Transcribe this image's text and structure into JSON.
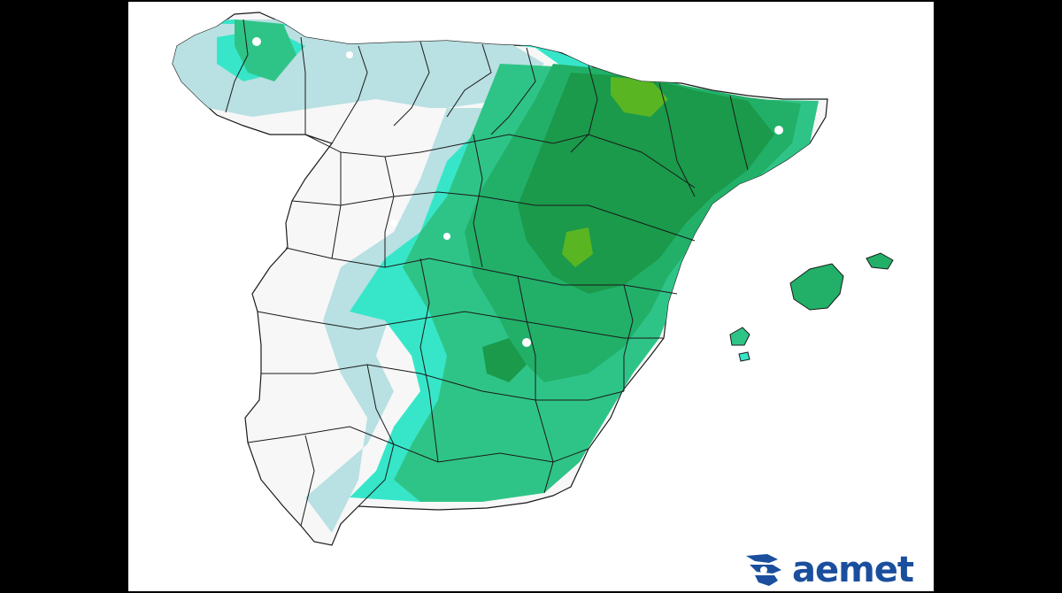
{
  "logo": {
    "text": "aemet",
    "icon": "aemet-swirl-icon",
    "color": "#1b4f9e"
  },
  "palette": {
    "background": "#000000",
    "map_bg": "#ffffff",
    "land_dry": "#f7f7f7",
    "pale_blue": "#b9e0e2",
    "cyan": "#37e6c9",
    "light_green": "#2fc487",
    "mid_green": "#22b069",
    "dark_green": "#1a9a4a",
    "yellow_green": "#5ab522",
    "borders": "#1a1a1a"
  }
}
